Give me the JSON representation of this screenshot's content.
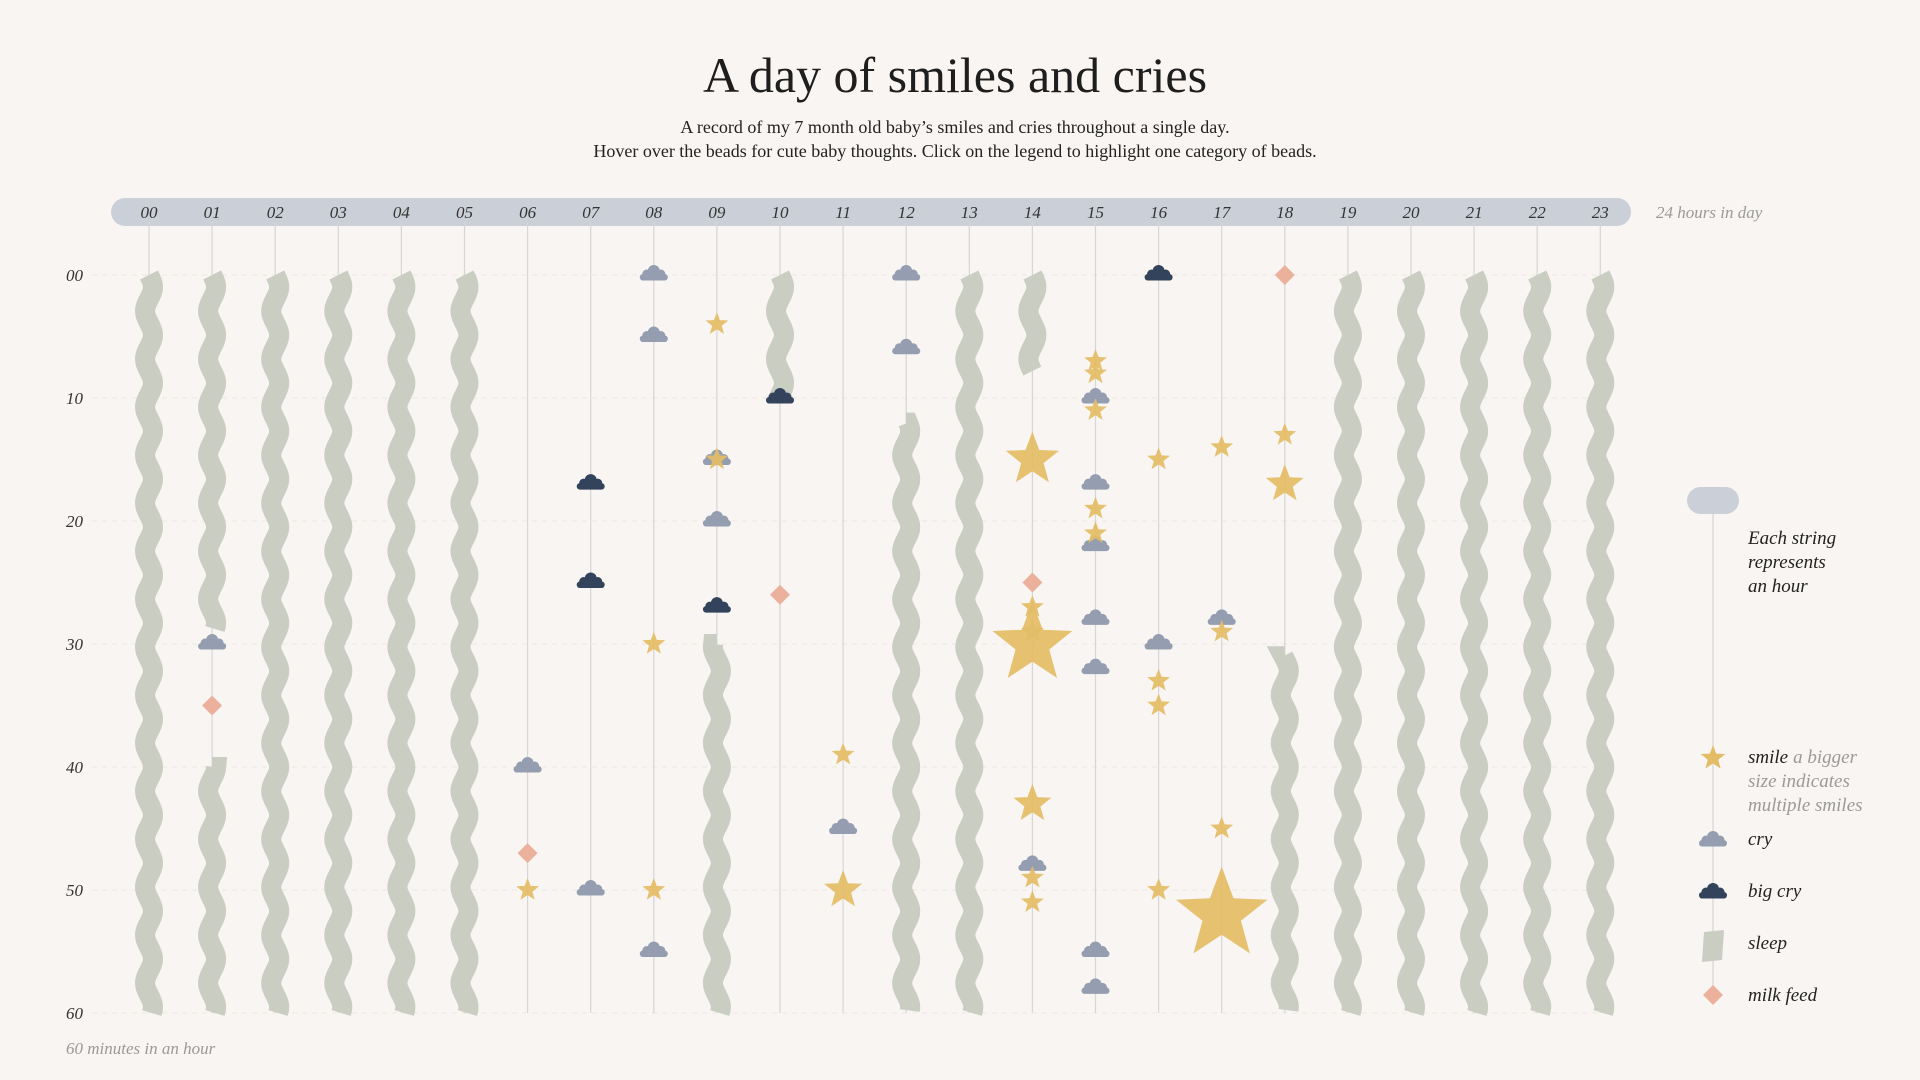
{
  "header": {
    "title": "A day of smiles and cries",
    "subtitle_line1": "A record of my 7 month old baby’s smiles and cries throughout a single day.",
    "subtitle_line2": "Hover over the beads for cute baby thoughts. Click on the legend to highlight one category of beads."
  },
  "axes": {
    "hours_note": "24 hours in day",
    "minutes_note": "60 minutes in an hour"
  },
  "legend": {
    "explain_lines": [
      "Each string",
      "represents",
      "an hour"
    ],
    "smile_label": "smile",
    "smile_sub_lines": [
      "a bigger",
      "size indicates",
      "multiple smiles"
    ],
    "cry_label": "cry",
    "bigcry_label": "big cry",
    "sleep_label": "sleep",
    "milk_label": "milk feed"
  },
  "colors": {
    "background": "#f8f5f2",
    "bar": "#cbcfd8",
    "string": "#d6d6d6",
    "smile": "#e3bc66",
    "cry": "#949eb0",
    "big_cry": "#33435b",
    "sleep": "#c9cdc2",
    "milk_feed": "#ebb19c"
  },
  "chart_data": {
    "type": "scatter",
    "title": "A day of smiles and cries",
    "x_axis": {
      "label": "24 hours in day",
      "categories": [
        "00",
        "01",
        "02",
        "03",
        "04",
        "05",
        "06",
        "07",
        "08",
        "09",
        "10",
        "11",
        "12",
        "13",
        "14",
        "15",
        "16",
        "17",
        "18",
        "19",
        "20",
        "21",
        "22",
        "23"
      ]
    },
    "y_axis": {
      "label": "60 minutes in an hour",
      "ticks": [
        "00",
        "10",
        "20",
        "30",
        "40",
        "50",
        "60"
      ],
      "range": [
        0,
        60
      ]
    },
    "sleep": [
      {
        "hour": 0,
        "start": 0,
        "end": 60
      },
      {
        "hour": 1,
        "start": 0,
        "end": 29
      },
      {
        "hour": 1,
        "start": 40,
        "end": 60
      },
      {
        "hour": 2,
        "start": 0,
        "end": 60
      },
      {
        "hour": 3,
        "start": 0,
        "end": 60
      },
      {
        "hour": 4,
        "start": 0,
        "end": 60
      },
      {
        "hour": 5,
        "start": 0,
        "end": 60
      },
      {
        "hour": 9,
        "start": 30,
        "end": 60
      },
      {
        "hour": 10,
        "start": 0,
        "end": 10
      },
      {
        "hour": 12,
        "start": 12,
        "end": 60
      },
      {
        "hour": 13,
        "start": 0,
        "end": 60
      },
      {
        "hour": 14,
        "start": 0,
        "end": 8
      },
      {
        "hour": 18,
        "start": 31,
        "end": 60
      },
      {
        "hour": 19,
        "start": 0,
        "end": 60
      },
      {
        "hour": 20,
        "start": 0,
        "end": 60
      },
      {
        "hour": 21,
        "start": 0,
        "end": 60
      },
      {
        "hour": 22,
        "start": 0,
        "end": 60
      },
      {
        "hour": 23,
        "start": 0,
        "end": 60
      }
    ],
    "smiles": [
      {
        "hour": 6,
        "minute": 50,
        "count": 1
      },
      {
        "hour": 8,
        "minute": 30,
        "count": 1
      },
      {
        "hour": 8,
        "minute": 50,
        "count": 1
      },
      {
        "hour": 9,
        "minute": 4,
        "count": 1
      },
      {
        "hour": 9,
        "minute": 15,
        "count": 1
      },
      {
        "hour": 11,
        "minute": 39,
        "count": 1
      },
      {
        "hour": 11,
        "minute": 50,
        "count": 2
      },
      {
        "hour": 14,
        "minute": 15,
        "count": 3
      },
      {
        "hour": 14,
        "minute": 27,
        "count": 1
      },
      {
        "hour": 14,
        "minute": 29,
        "count": 1
      },
      {
        "hour": 14,
        "minute": 30,
        "count": 5
      },
      {
        "hour": 14,
        "minute": 43,
        "count": 2
      },
      {
        "hour": 14,
        "minute": 49,
        "count": 1
      },
      {
        "hour": 14,
        "minute": 51,
        "count": 1
      },
      {
        "hour": 15,
        "minute": 7,
        "count": 1
      },
      {
        "hour": 15,
        "minute": 8,
        "count": 1
      },
      {
        "hour": 15,
        "minute": 11,
        "count": 1
      },
      {
        "hour": 15,
        "minute": 19,
        "count": 1
      },
      {
        "hour": 15,
        "minute": 21,
        "count": 1
      },
      {
        "hour": 16,
        "minute": 15,
        "count": 1
      },
      {
        "hour": 16,
        "minute": 33,
        "count": 1
      },
      {
        "hour": 16,
        "minute": 35,
        "count": 1
      },
      {
        "hour": 16,
        "minute": 50,
        "count": 1
      },
      {
        "hour": 17,
        "minute": 14,
        "count": 1
      },
      {
        "hour": 17,
        "minute": 29,
        "count": 1
      },
      {
        "hour": 17,
        "minute": 45,
        "count": 1
      },
      {
        "hour": 17,
        "minute": 52,
        "count": 6
      },
      {
        "hour": 18,
        "minute": 13,
        "count": 1
      },
      {
        "hour": 18,
        "minute": 17,
        "count": 2
      }
    ],
    "cries": [
      {
        "hour": 1,
        "minute": 30
      },
      {
        "hour": 6,
        "minute": 40
      },
      {
        "hour": 7,
        "minute": 50
      },
      {
        "hour": 8,
        "minute": 0
      },
      {
        "hour": 8,
        "minute": 5
      },
      {
        "hour": 8,
        "minute": 55
      },
      {
        "hour": 9,
        "minute": 15
      },
      {
        "hour": 9,
        "minute": 20
      },
      {
        "hour": 11,
        "minute": 45
      },
      {
        "hour": 12,
        "minute": 0
      },
      {
        "hour": 12,
        "minute": 6
      },
      {
        "hour": 14,
        "minute": 48
      },
      {
        "hour": 15,
        "minute": 10
      },
      {
        "hour": 15,
        "minute": 17
      },
      {
        "hour": 15,
        "minute": 22
      },
      {
        "hour": 15,
        "minute": 28
      },
      {
        "hour": 15,
        "minute": 32
      },
      {
        "hour": 15,
        "minute": 55
      },
      {
        "hour": 15,
        "minute": 58
      },
      {
        "hour": 16,
        "minute": 30
      },
      {
        "hour": 17,
        "minute": 28
      }
    ],
    "big_cries": [
      {
        "hour": 7,
        "minute": 17
      },
      {
        "hour": 7,
        "minute": 25
      },
      {
        "hour": 9,
        "minute": 27
      },
      {
        "hour": 10,
        "minute": 10
      },
      {
        "hour": 16,
        "minute": 0
      }
    ],
    "milk_feeds": [
      {
        "hour": 1,
        "minute": 35
      },
      {
        "hour": 6,
        "minute": 47
      },
      {
        "hour": 10,
        "minute": 26
      },
      {
        "hour": 14,
        "minute": 25
      },
      {
        "hour": 18,
        "minute": 0
      }
    ]
  }
}
